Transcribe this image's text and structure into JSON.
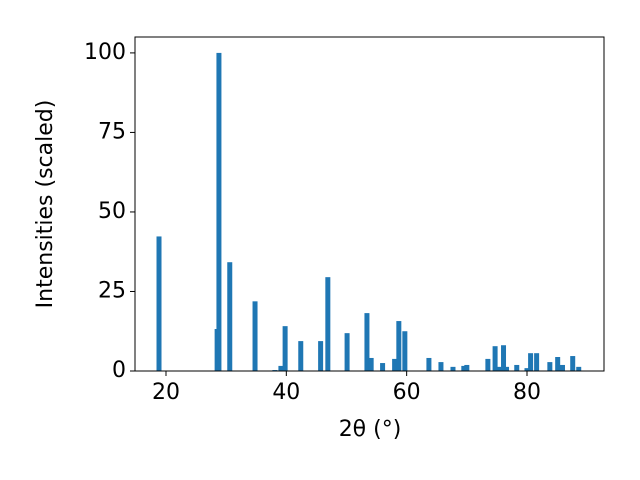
{
  "chart_data": {
    "type": "bar",
    "xlabel": "2θ (°)",
    "ylabel": "Intensities (scaled)",
    "color": "#1f77b4",
    "x": [
      18.84,
      28.5,
      28.8,
      30.6,
      34.8,
      38.1,
      39.1,
      39.8,
      42.4,
      45.7,
      46.9,
      50.1,
      53.4,
      54.1,
      56.0,
      58.0,
      58.7,
      59.7,
      63.7,
      65.7,
      67.7,
      69.5,
      70.0,
      73.5,
      74.7,
      75.3,
      76.1,
      76.6,
      78.3,
      80.0,
      80.6,
      81.6,
      83.8,
      85.1,
      85.9,
      87.6,
      88.6
    ],
    "values": [
      42.3,
      13.2,
      100,
      34.2,
      21.9,
      0.3,
      1.6,
      14.1,
      9.4,
      9.4,
      29.5,
      11.9,
      18.2,
      4.1,
      2.5,
      3.8,
      15.7,
      12.5,
      4.1,
      2.8,
      1.3,
      1.6,
      1.9,
      3.8,
      7.8,
      1.3,
      8.1,
      1.3,
      1.9,
      0.9,
      5.6,
      5.6,
      2.8,
      4.4,
      1.9,
      4.7,
      1.3
    ],
    "xlim": [
      14.85,
      92.8
    ],
    "ylim": [
      0,
      105
    ],
    "xticks": [
      20,
      40,
      60,
      80
    ],
    "yticks": [
      0,
      25,
      50,
      75,
      100
    ]
  }
}
